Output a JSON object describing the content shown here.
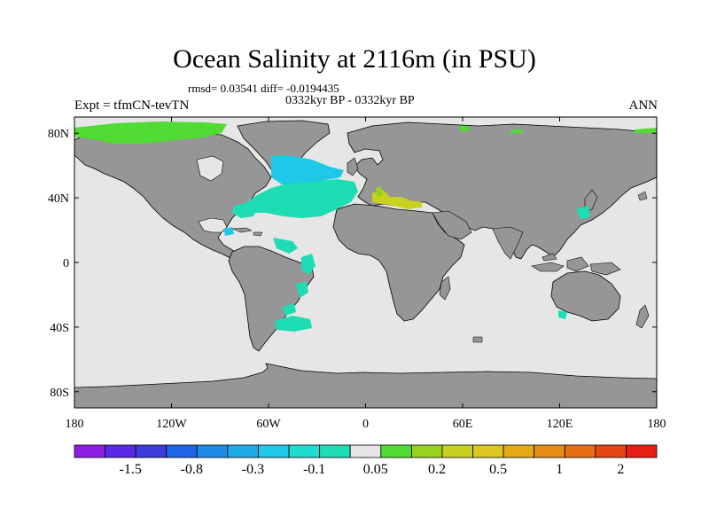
{
  "title": "Ocean Salinity at 2116m (in PSU)",
  "stats": "rmsd= 0.03541 diff= -0.0194435",
  "period": "0332kyr BP - 0332kyr BP",
  "expt": "Expt = tfmCN-tevTN",
  "season": "ANN",
  "lon_ticks": [
    "180",
    "120W",
    "60W",
    "0",
    "60E",
    "120E",
    "180"
  ],
  "lat_ticks": [
    "80N",
    "40N",
    "0",
    "40S",
    "80S"
  ],
  "colorbar": {
    "colors": [
      "#8c1ee6",
      "#5a28e6",
      "#3c3cdc",
      "#1e64e6",
      "#1e8ce6",
      "#1eaae6",
      "#1ec8e6",
      "#1edcd2",
      "#1edcb4",
      "#e6e6e6",
      "#50dc32",
      "#96d21e",
      "#c8d21e",
      "#dcc81e",
      "#e6aa14",
      "#e68c14",
      "#e66e14",
      "#e64614",
      "#e61e14"
    ],
    "labels": [
      "-1.5",
      "-0.8",
      "-0.3",
      "-0.1",
      "0.05",
      "0.2",
      "0.5",
      "1",
      "2"
    ]
  },
  "colors": {
    "land": "#969696",
    "ocean_neutral": "#e6e6e6",
    "north_atlantic": "#1ec8e6",
    "atlantic": "#1edcb4",
    "mediterranean": "#c8d21e",
    "arctic": "#50dc32",
    "frame": "#000000"
  }
}
